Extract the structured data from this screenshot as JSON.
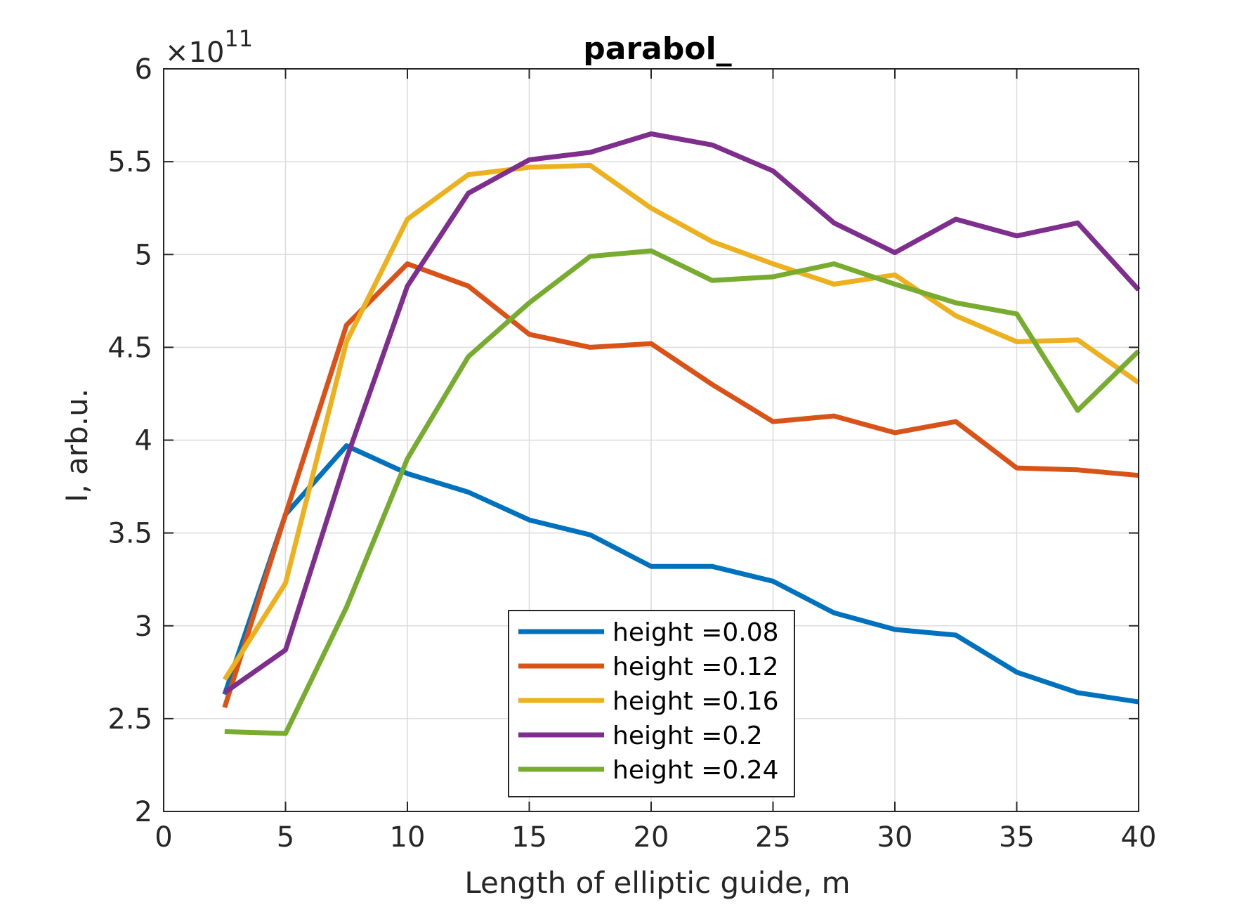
{
  "chart_data": {
    "type": "line",
    "title": "parabol_",
    "xlabel": "Length of elliptic guide, m",
    "ylabel": "I, arb.u.",
    "y_exponent_base": "×10",
    "y_exponent_power": "11",
    "xlim": [
      0,
      40
    ],
    "ylim": [
      2,
      6
    ],
    "xticks": [
      "0",
      "5",
      "10",
      "15",
      "20",
      "25",
      "30",
      "35",
      "40"
    ],
    "yticks": [
      "2",
      "2.5",
      "3",
      "3.5",
      "4",
      "4.5",
      "5",
      "5.5",
      "6"
    ],
    "grid": true,
    "legend_position": "bottom-center",
    "x": [
      2.5,
      5,
      7.5,
      10,
      12.5,
      15,
      17.5,
      20,
      22.5,
      25,
      27.5,
      30,
      32.5,
      35,
      37.5,
      40
    ],
    "series": [
      {
        "name": "height =0.08",
        "color": "#0072BD",
        "values": [
          2.63,
          3.6,
          3.97,
          3.82,
          3.72,
          3.57,
          3.49,
          3.32,
          3.32,
          3.24,
          3.07,
          2.98,
          2.95,
          2.75,
          2.64,
          2.59
        ]
      },
      {
        "name": "height =0.12",
        "color": "#D95319",
        "values": [
          2.56,
          3.6,
          4.62,
          4.95,
          4.83,
          4.57,
          4.5,
          4.52,
          4.3,
          4.1,
          4.13,
          4.04,
          4.1,
          3.85,
          3.84,
          3.81
        ]
      },
      {
        "name": "height =0.16",
        "color": "#EDB120",
        "values": [
          2.71,
          3.23,
          4.53,
          5.19,
          5.43,
          5.47,
          5.48,
          5.25,
          5.07,
          4.95,
          4.84,
          4.89,
          4.67,
          4.53,
          4.54,
          4.31
        ]
      },
      {
        "name": "height =0.2",
        "color": "#7E2F8E",
        "values": [
          2.64,
          2.87,
          3.9,
          4.83,
          5.33,
          5.51,
          5.55,
          5.65,
          5.59,
          5.45,
          5.17,
          5.01,
          5.19,
          5.1,
          5.17,
          4.81
        ]
      },
      {
        "name": "height =0.24",
        "color": "#77AC30",
        "values": [
          2.43,
          2.42,
          3.1,
          3.9,
          4.45,
          4.74,
          4.99,
          5.02,
          4.86,
          4.88,
          4.95,
          4.84,
          4.74,
          4.68,
          4.16,
          4.48
        ]
      }
    ]
  }
}
